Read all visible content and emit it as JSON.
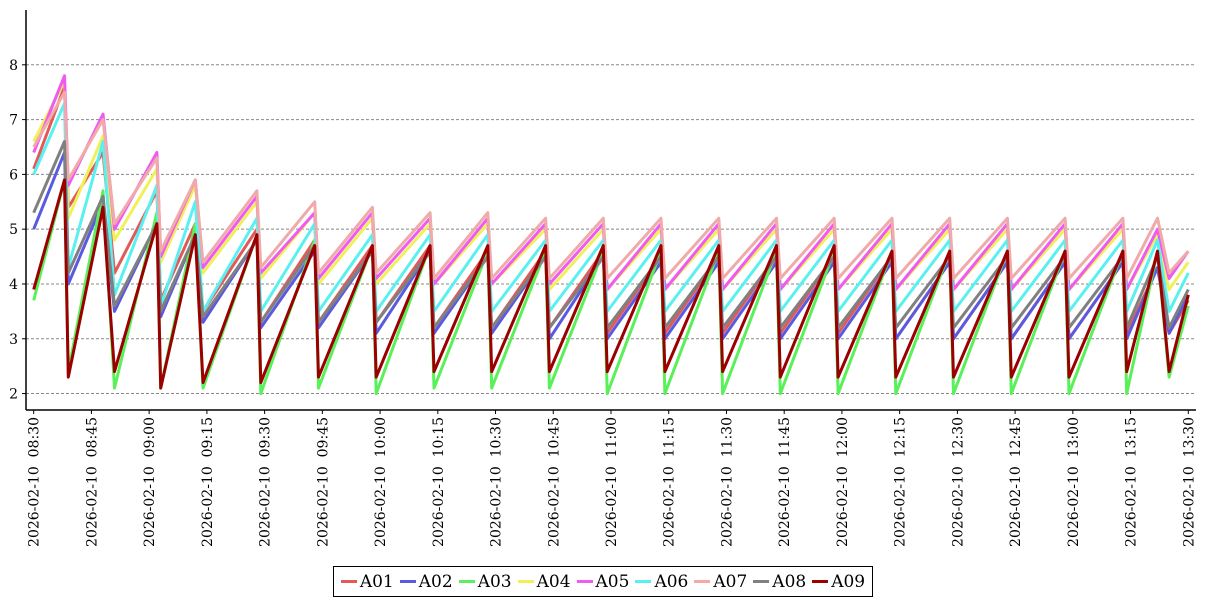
{
  "chart_data": {
    "type": "line",
    "title": "",
    "xlabel": "",
    "ylabel": "",
    "ylim": [
      1.7,
      9.0
    ],
    "xlim": [
      "2026-02-10 08:28",
      "2026-02-10 13:32"
    ],
    "y_ticks": [
      "2",
      "3",
      "4",
      "5",
      "6",
      "7",
      "8"
    ],
    "x_tick_labels": [
      "2026-02-10  08:30",
      "2026-02-10  08:45",
      "2026-02-10  09:00",
      "2026-02-10  09:15",
      "2026-02-10  09:30",
      "2026-02-10  09:45",
      "2026-02-10  10:00",
      "2026-02-10  10:15",
      "2026-02-10  10:30",
      "2026-02-10  10:45",
      "2026-02-10  11:00",
      "2026-02-10  11:15",
      "2026-02-10  11:30",
      "2026-02-10  11:45",
      "2026-02-10  12:00",
      "2026-02-10  12:15",
      "2026-02-10  12:30",
      "2026-02-10  12:45",
      "2026-02-10  13:00",
      "2026-02-10  13:15",
      "2026-02-10  13:30"
    ],
    "grid": "horizontal dashed",
    "legend_position": "bottom-center",
    "x": [
      "2026-02-10 08:30",
      "2026-02-10 08:38",
      "2026-02-10 08:39",
      "2026-02-10 08:48",
      "2026-02-10 08:51",
      "2026-02-10 09:02",
      "2026-02-10 09:03",
      "2026-02-10 09:12",
      "2026-02-10 09:14",
      "2026-02-10 09:28",
      "2026-02-10 09:29",
      "2026-02-10 09:43",
      "2026-02-10 09:44",
      "2026-02-10 09:58",
      "2026-02-10 09:59",
      "2026-02-10 10:13",
      "2026-02-10 10:14",
      "2026-02-10 10:28",
      "2026-02-10 10:29",
      "2026-02-10 10:43",
      "2026-02-10 10:44",
      "2026-02-10 10:58",
      "2026-02-10 10:59",
      "2026-02-10 11:13",
      "2026-02-10 11:14",
      "2026-02-10 11:28",
      "2026-02-10 11:29",
      "2026-02-10 11:43",
      "2026-02-10 11:44",
      "2026-02-10 11:58",
      "2026-02-10 11:59",
      "2026-02-10 12:13",
      "2026-02-10 12:14",
      "2026-02-10 12:28",
      "2026-02-10 12:29",
      "2026-02-10 12:43",
      "2026-02-10 12:44",
      "2026-02-10 12:58",
      "2026-02-10 12:59",
      "2026-02-10 13:13",
      "2026-02-10 13:14",
      "2026-02-10 13:22",
      "2026-02-10 13:25",
      "2026-02-10 13:30"
    ],
    "series": [
      {
        "name": "A01",
        "color": "#e05a5a",
        "values": [
          6.1,
          7.6,
          5.4,
          6.4,
          4.2,
          5.7,
          3.7,
          5.1,
          3.5,
          5.0,
          3.3,
          4.8,
          3.3,
          4.7,
          3.3,
          4.7,
          3.2,
          4.6,
          3.2,
          4.6,
          3.2,
          4.6,
          3.1,
          4.5,
          3.1,
          4.5,
          3.1,
          4.5,
          3.1,
          4.5,
          3.1,
          4.5,
          3.0,
          4.4,
          3.0,
          4.4,
          3.0,
          4.4,
          3.0,
          4.4,
          3.1,
          4.3,
          3.1,
          3.7
        ]
      },
      {
        "name": "A02",
        "color": "#5a5ae0",
        "values": [
          5.0,
          6.4,
          4.0,
          5.5,
          3.5,
          5.1,
          3.4,
          4.9,
          3.3,
          4.8,
          3.2,
          4.6,
          3.2,
          4.6,
          3.1,
          4.6,
          3.1,
          4.5,
          3.1,
          4.5,
          3.0,
          4.5,
          3.0,
          4.4,
          3.0,
          4.4,
          3.0,
          4.4,
          3.0,
          4.4,
          3.0,
          4.4,
          3.0,
          4.4,
          3.0,
          4.4,
          3.0,
          4.4,
          3.0,
          4.4,
          3.0,
          4.3,
          3.1,
          3.8
        ]
      },
      {
        "name": "A03",
        "color": "#5af05a",
        "values": [
          3.7,
          5.9,
          2.4,
          5.7,
          2.1,
          5.3,
          2.1,
          5.1,
          2.1,
          4.9,
          2.0,
          4.8,
          2.1,
          4.7,
          2.0,
          4.7,
          2.1,
          4.6,
          2.1,
          4.6,
          2.1,
          4.6,
          2.0,
          4.6,
          2.0,
          4.6,
          2.0,
          4.6,
          2.0,
          4.6,
          2.0,
          4.6,
          2.0,
          4.6,
          2.0,
          4.6,
          2.0,
          4.6,
          2.0,
          4.6,
          2.0,
          4.6,
          2.3,
          3.6
        ]
      },
      {
        "name": "A04",
        "color": "#f0f05a",
        "values": [
          6.6,
          7.7,
          5.2,
          6.7,
          4.8,
          6.1,
          4.4,
          5.8,
          4.2,
          5.5,
          4.1,
          5.3,
          4.0,
          5.2,
          4.0,
          5.1,
          4.0,
          5.1,
          4.0,
          5.0,
          3.9,
          5.0,
          3.9,
          5.0,
          3.9,
          5.0,
          3.9,
          5.0,
          3.9,
          5.0,
          3.9,
          5.0,
          3.9,
          5.0,
          3.9,
          5.0,
          3.9,
          5.0,
          3.9,
          5.0,
          3.9,
          4.9,
          3.9,
          4.4
        ]
      },
      {
        "name": "A05",
        "color": "#f05af0",
        "values": [
          6.4,
          7.8,
          5.8,
          7.1,
          5.0,
          6.4,
          4.5,
          5.9,
          4.3,
          5.6,
          4.2,
          5.3,
          4.1,
          5.3,
          4.1,
          5.2,
          4.0,
          5.2,
          4.0,
          5.1,
          4.0,
          5.1,
          3.9,
          5.1,
          3.9,
          5.1,
          3.9,
          5.1,
          3.9,
          5.1,
          3.9,
          5.1,
          3.9,
          5.1,
          3.9,
          5.1,
          3.9,
          5.1,
          3.9,
          5.1,
          3.9,
          5.0,
          4.1,
          4.6
        ]
      },
      {
        "name": "A06",
        "color": "#5af0f0",
        "values": [
          6.0,
          7.3,
          4.3,
          6.6,
          3.8,
          5.8,
          3.6,
          5.5,
          3.5,
          5.2,
          3.5,
          5.1,
          3.5,
          4.9,
          3.5,
          4.9,
          3.5,
          4.9,
          3.5,
          4.8,
          3.5,
          4.8,
          3.5,
          4.8,
          3.5,
          4.8,
          3.5,
          4.8,
          3.5,
          4.8,
          3.5,
          4.8,
          3.5,
          4.8,
          3.5,
          4.8,
          3.5,
          4.8,
          3.5,
          4.8,
          3.5,
          4.8,
          3.5,
          4.2
        ]
      },
      {
        "name": "A07",
        "color": "#f0aaaa",
        "values": [
          6.5,
          7.5,
          5.9,
          7.0,
          5.1,
          6.3,
          4.6,
          5.9,
          4.4,
          5.7,
          4.3,
          5.5,
          4.2,
          5.4,
          4.2,
          5.3,
          4.1,
          5.3,
          4.1,
          5.2,
          4.1,
          5.2,
          4.1,
          5.2,
          4.1,
          5.2,
          4.1,
          5.2,
          4.1,
          5.2,
          4.1,
          5.2,
          4.1,
          5.2,
          4.1,
          5.2,
          4.1,
          5.2,
          4.1,
          5.2,
          4.1,
          5.2,
          4.2,
          4.6
        ]
      },
      {
        "name": "A08",
        "color": "#808080",
        "values": [
          5.3,
          6.6,
          4.2,
          5.6,
          3.6,
          5.1,
          3.5,
          4.9,
          3.4,
          4.8,
          3.3,
          4.7,
          3.3,
          4.6,
          3.3,
          4.6,
          3.2,
          4.5,
          3.2,
          4.5,
          3.2,
          4.5,
          3.2,
          4.5,
          3.2,
          4.5,
          3.2,
          4.5,
          3.2,
          4.5,
          3.2,
          4.5,
          3.2,
          4.5,
          3.2,
          4.5,
          3.2,
          4.5,
          3.2,
          4.5,
          3.2,
          4.5,
          3.2,
          3.9
        ]
      },
      {
        "name": "A09",
        "color": "#9b0000",
        "values": [
          3.9,
          5.9,
          2.3,
          5.4,
          2.4,
          5.1,
          2.1,
          4.9,
          2.2,
          4.9,
          2.2,
          4.7,
          2.3,
          4.7,
          2.3,
          4.7,
          2.4,
          4.7,
          2.4,
          4.7,
          2.4,
          4.7,
          2.4,
          4.7,
          2.4,
          4.7,
          2.4,
          4.7,
          2.3,
          4.7,
          2.3,
          4.6,
          2.3,
          4.6,
          2.3,
          4.6,
          2.3,
          4.6,
          2.3,
          4.6,
          2.4,
          4.6,
          2.4,
          3.8
        ]
      }
    ]
  }
}
